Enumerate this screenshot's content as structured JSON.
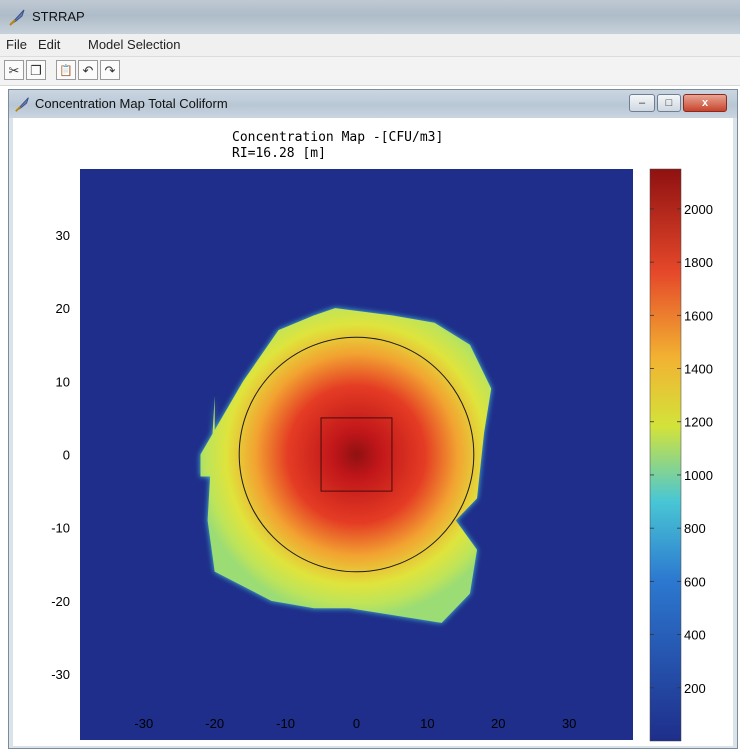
{
  "app": {
    "title": "STRRAP"
  },
  "menu": {
    "items": [
      "File",
      "Edit",
      "Model Selection"
    ]
  },
  "toolbar": {
    "buttons": [
      {
        "name": "cut-button",
        "icon": "scissors-icon",
        "glyph": "✂"
      },
      {
        "name": "copy-button",
        "icon": "copy-icon",
        "glyph": "❐"
      },
      {
        "name": "paste-button",
        "icon": "paste-icon",
        "glyph": "📋"
      },
      {
        "name": "undo-button",
        "icon": "undo-icon",
        "glyph": "↶"
      },
      {
        "name": "redo-button",
        "icon": "redo-icon",
        "glyph": "↷"
      }
    ]
  },
  "window": {
    "title": "Concentration Map Total Coliform",
    "minimize": "–",
    "maximize": "□",
    "close": "x"
  },
  "chart_data": {
    "type": "heatmap",
    "title": "Concentration Map -[CFU/m3]",
    "subtitle": "RI=16.28 [m]",
    "xlim": [
      -39,
      39
    ],
    "ylim": [
      -39,
      39
    ],
    "xticks": [
      -30,
      -20,
      -10,
      0,
      10,
      20,
      30
    ],
    "yticks": [
      30,
      20,
      10,
      0,
      -10,
      -20,
      -30
    ],
    "colorbar": {
      "range": [
        0,
        2150
      ],
      "ticks": [
        2000,
        1800,
        1600,
        1400,
        1200,
        1000,
        800,
        600,
        400,
        200
      ]
    },
    "colors": {
      "background": "#1e2e8a",
      "low": "#49c7d4",
      "mid": "#d3e33a",
      "high": "#d91f1a",
      "peak": "#8f1111"
    },
    "plume": {
      "peak_value": 2150,
      "boundary_value": 900,
      "center": [
        0,
        0
      ],
      "outline": [
        [
          -20,
          8
        ],
        [
          -20,
          -3
        ],
        [
          -22,
          -3
        ],
        [
          -22,
          0
        ],
        [
          -16,
          10
        ],
        [
          -11,
          17
        ],
        [
          -6,
          19
        ],
        [
          -3,
          20
        ],
        [
          5,
          19
        ],
        [
          11,
          18
        ],
        [
          16,
          15
        ],
        [
          19,
          9
        ],
        [
          18,
          3
        ],
        [
          17,
          -6
        ],
        [
          14,
          -9
        ],
        [
          17,
          -13
        ],
        [
          16,
          -19
        ],
        [
          12,
          -23
        ],
        [
          -1,
          -21
        ],
        [
          -6,
          -21
        ],
        [
          -12,
          -20
        ],
        [
          -20,
          -16
        ],
        [
          -21,
          -9
        ]
      ]
    },
    "radius_of_influence": 16.28,
    "source_square": {
      "xmin": -5,
      "xmax": 5,
      "ymin": -5,
      "ymax": 5
    }
  }
}
